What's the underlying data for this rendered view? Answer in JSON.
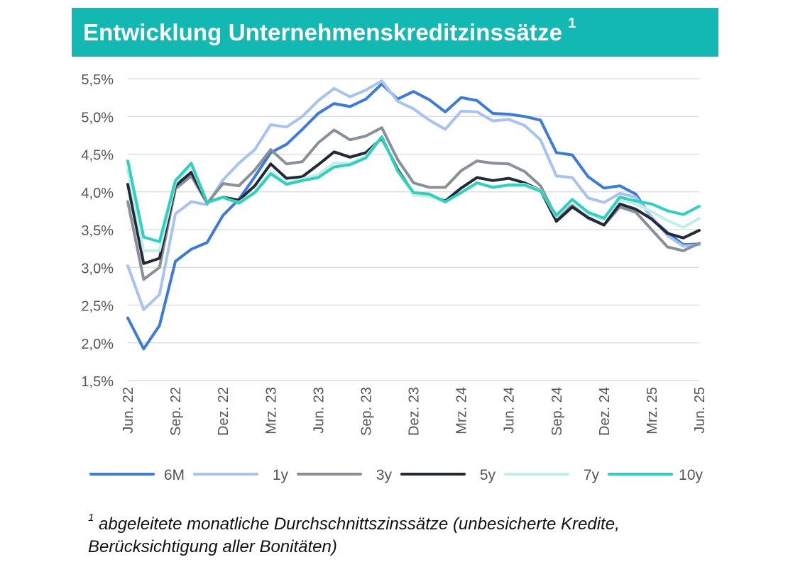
{
  "title": {
    "text": "Entwicklung Unternehmenskreditzinssätze",
    "sup": "1"
  },
  "footnote": {
    "sup": "1",
    "text": " abgeleitete monatliche Durchschnittszinssätze (unbesicherte Kredite, Berücksichtigung aller Bonitäten)"
  },
  "chart_data": {
    "type": "line",
    "ylim": [
      1.5,
      5.5
    ],
    "yticks": [
      "1,5%",
      "2,0%",
      "2,5%",
      "3,0%",
      "3,5%",
      "4,0%",
      "4,5%",
      "5,0%",
      "5,5%"
    ],
    "grid": true,
    "legend_position": "bottom",
    "x_labels": [
      "Jun. 22",
      "Sep. 22",
      "Dez. 22",
      "Mrz. 23",
      "Jun. 23",
      "Sep. 23",
      "Dez. 23",
      "Mrz. 24",
      "Jun. 24",
      "Sep. 24",
      "Dez. 24",
      "Mrz. 25",
      "Jun. 25"
    ],
    "x": [
      "Jun. 22",
      "Jul. 22",
      "Aug. 22",
      "Sep. 22",
      "Okt. 22",
      "Nov. 22",
      "Dez. 22",
      "Jan. 23",
      "Feb. 23",
      "Mrz. 23",
      "Apr. 23",
      "Mai 23",
      "Jun. 23",
      "Jul. 23",
      "Aug. 23",
      "Sep. 23",
      "Okt. 23",
      "Nov. 23",
      "Dez. 23",
      "Jan. 24",
      "Feb. 24",
      "Mrz. 24",
      "Apr. 24",
      "Mai 24",
      "Jun. 24",
      "Jul. 24",
      "Aug. 24",
      "Sep. 24",
      "Okt. 24",
      "Nov. 24",
      "Dez. 24",
      "Jan. 25",
      "Feb. 25",
      "Mrz. 25",
      "Apr. 25",
      "Mai 25",
      "Jun. 25"
    ],
    "series": [
      {
        "name": "6M",
        "color": "#3c7bd8",
        "values": [
          2.33,
          1.92,
          2.23,
          3.08,
          3.24,
          3.33,
          3.69,
          3.9,
          4.2,
          4.52,
          4.63,
          4.83,
          5.04,
          5.17,
          5.13,
          5.23,
          5.43,
          5.23,
          5.33,
          5.22,
          5.06,
          5.25,
          5.21,
          5.04,
          5.03,
          5.0,
          4.95,
          4.52,
          4.49,
          4.2,
          4.05,
          4.08,
          3.97,
          3.65,
          3.46,
          3.3,
          3.31
        ]
      },
      {
        "name": "1y",
        "color": "#a7c3ee",
        "values": [
          3.02,
          2.44,
          2.64,
          3.71,
          3.87,
          3.83,
          4.16,
          4.38,
          4.56,
          4.89,
          4.86,
          5.0,
          5.21,
          5.37,
          5.26,
          5.35,
          5.47,
          5.2,
          5.1,
          4.95,
          4.83,
          5.07,
          5.06,
          4.94,
          4.96,
          4.88,
          4.69,
          4.21,
          4.19,
          3.92,
          3.86,
          3.98,
          3.93,
          3.67,
          3.42,
          3.28,
          3.3
        ]
      },
      {
        "name": "3y",
        "color": "#8a9099",
        "values": [
          3.87,
          2.84,
          3.0,
          4.04,
          4.21,
          3.85,
          4.11,
          4.08,
          4.29,
          4.56,
          4.37,
          4.4,
          4.65,
          4.82,
          4.69,
          4.74,
          4.85,
          4.43,
          4.12,
          4.06,
          4.06,
          4.28,
          4.41,
          4.38,
          4.37,
          4.27,
          4.08,
          3.66,
          3.82,
          3.65,
          3.56,
          3.8,
          3.73,
          3.5,
          3.27,
          3.22,
          3.32
        ]
      },
      {
        "name": "5y",
        "color": "#232a37",
        "values": [
          4.1,
          3.05,
          3.12,
          4.08,
          4.26,
          3.86,
          3.93,
          3.89,
          4.08,
          4.37,
          4.18,
          4.2,
          4.36,
          4.53,
          4.46,
          4.52,
          4.71,
          4.3,
          3.98,
          3.95,
          3.88,
          4.05,
          4.19,
          4.15,
          4.18,
          4.12,
          4.02,
          3.61,
          3.8,
          3.66,
          3.56,
          3.84,
          3.77,
          3.64,
          3.45,
          3.39,
          3.49
        ]
      },
      {
        "name": "7y",
        "color": "#c2eeea",
        "values": [
          4.3,
          3.22,
          3.22,
          4.12,
          4.35,
          3.86,
          3.92,
          3.86,
          4.0,
          4.27,
          4.12,
          4.17,
          4.23,
          4.38,
          4.38,
          4.47,
          4.73,
          4.27,
          3.96,
          3.94,
          3.86,
          3.99,
          4.12,
          4.07,
          4.1,
          4.1,
          4.02,
          3.67,
          3.88,
          3.71,
          3.63,
          3.9,
          3.84,
          3.74,
          3.62,
          3.53,
          3.65
        ]
      },
      {
        "name": "10y",
        "color": "#2fd0bd",
        "values": [
          4.41,
          3.4,
          3.34,
          4.15,
          4.38,
          3.86,
          3.93,
          3.85,
          3.99,
          4.24,
          4.1,
          4.15,
          4.19,
          4.33,
          4.36,
          4.45,
          4.73,
          4.28,
          3.99,
          3.97,
          3.87,
          3.99,
          4.12,
          4.06,
          4.09,
          4.09,
          4.01,
          3.69,
          3.9,
          3.73,
          3.65,
          3.93,
          3.88,
          3.84,
          3.75,
          3.7,
          3.81
        ]
      }
    ]
  }
}
